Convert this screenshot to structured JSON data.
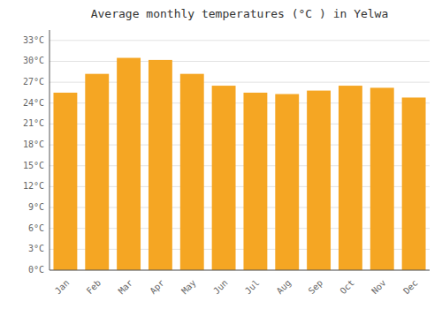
{
  "chart_data": {
    "type": "bar",
    "title": "Average monthly temperatures (°C ) in Yelwa",
    "categories": [
      "Jan",
      "Feb",
      "Mar",
      "Apr",
      "May",
      "Jun",
      "Jul",
      "Aug",
      "Sep",
      "Oct",
      "Nov",
      "Dec"
    ],
    "values": [
      25.5,
      28.2,
      30.5,
      30.2,
      28.2,
      26.5,
      25.5,
      25.3,
      25.8,
      26.5,
      26.2,
      24.8
    ],
    "color": "#F5A623",
    "ylim": [
      0,
      34.5
    ],
    "yticks": [
      {
        "value": 0,
        "label": "0°C"
      },
      {
        "value": 3,
        "label": "3°C"
      },
      {
        "value": 6,
        "label": "6°C"
      },
      {
        "value": 9,
        "label": "9°C"
      },
      {
        "value": 12,
        "label": "12°C"
      },
      {
        "value": 15,
        "label": "15°C"
      },
      {
        "value": 18,
        "label": "18°C"
      },
      {
        "value": 21,
        "label": "21°C"
      },
      {
        "value": 24,
        "label": "24°C"
      },
      {
        "value": 27,
        "label": "27°C"
      },
      {
        "value": 30,
        "label": "30°C"
      },
      {
        "value": 33,
        "label": "33°C"
      }
    ],
    "grid": true
  }
}
